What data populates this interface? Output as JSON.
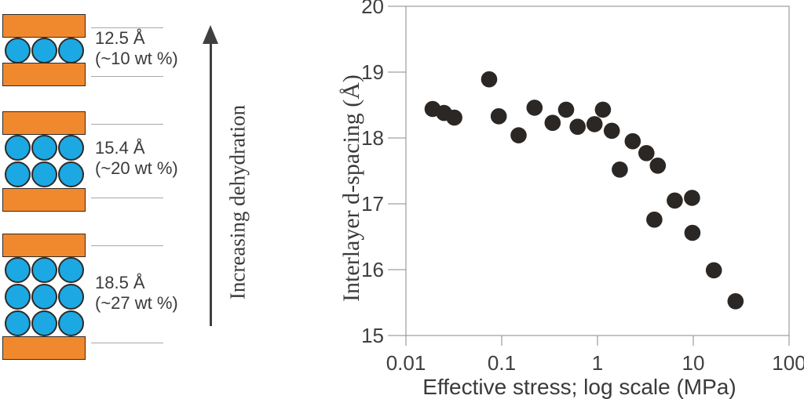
{
  "diagram": {
    "arrow_label": "Increasing dehydration",
    "states": [
      {
        "dspacing": "12.5 Å",
        "water_content": "(~10 wt %)",
        "water_rows": 1,
        "molecules_per_row": 3
      },
      {
        "dspacing": "15.4 Å",
        "water_content": "(~20 wt %)",
        "water_rows": 2,
        "molecules_per_row": 3
      },
      {
        "dspacing": "18.5 Å",
        "water_content": "(~27 wt %)",
        "water_rows": 3,
        "molecules_per_row": 3
      }
    ],
    "colors": {
      "clay_layer": "#F0892E",
      "water_molecule": "#1CA8E3",
      "outline": "#2E2A26",
      "arrow": "#3F3F3F"
    }
  },
  "chart_data": {
    "type": "scatter",
    "title": "",
    "xlabel": "Effective stress; log scale (MPa)",
    "ylabel": "Interlayer d-spacing (Å)",
    "x_scale": "log",
    "xlim": [
      0.01,
      100
    ],
    "ylim": [
      15,
      20
    ],
    "x_tick_values": [
      0.01,
      0.1,
      1,
      10,
      100
    ],
    "x_tick_labels": [
      "0.01",
      "0.1",
      "1",
      "10",
      "100"
    ],
    "y_tick_values": [
      15,
      16,
      17,
      18,
      19,
      20
    ],
    "y_tick_labels": [
      "15",
      "16",
      "17",
      "18",
      "19",
      "20"
    ],
    "grid": false,
    "legend": "none",
    "marker_color": "#2B2724",
    "axis_color": "#8A8A8A",
    "points": [
      [
        0.019,
        18.44
      ],
      [
        0.025,
        18.38
      ],
      [
        0.032,
        18.31
      ],
      [
        0.074,
        18.89
      ],
      [
        0.093,
        18.33
      ],
      [
        0.15,
        18.04
      ],
      [
        0.22,
        18.46
      ],
      [
        0.34,
        18.23
      ],
      [
        0.47,
        18.43
      ],
      [
        0.62,
        18.17
      ],
      [
        0.93,
        18.21
      ],
      [
        1.14,
        18.43
      ],
      [
        1.41,
        18.11
      ],
      [
        1.71,
        17.52
      ],
      [
        2.33,
        17.95
      ],
      [
        3.24,
        17.77
      ],
      [
        4.26,
        17.58
      ],
      [
        3.92,
        16.76
      ],
      [
        6.4,
        17.05
      ],
      [
        9.7,
        17.09
      ],
      [
        9.8,
        16.56
      ],
      [
        16.4,
        15.99
      ],
      [
        27.6,
        15.52
      ]
    ]
  }
}
